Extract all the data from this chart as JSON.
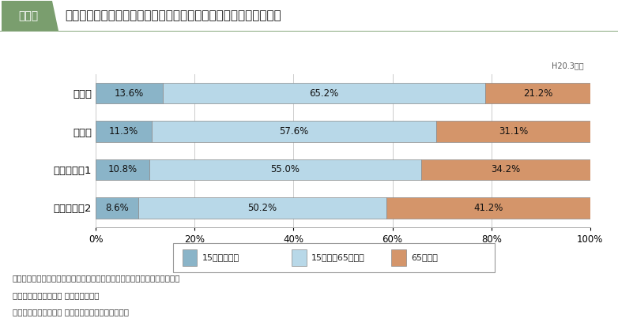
{
  "title": "岩手・宮城内陸地震における孤立発生地区（栗原市内）の高齢化率",
  "title_tag": "図表６",
  "subtitle": "H20.3時点",
  "categories": [
    "宮城県",
    "栗原市",
    "栗駒地区*1",
    "花山地区*2"
  ],
  "categories_display": [
    "宮城県",
    "栗原市",
    "栗駒地区＊1",
    "花山地区＊2"
  ],
  "segment1_values": [
    13.6,
    11.3,
    10.8,
    8.6
  ],
  "segment2_values": [
    65.2,
    57.6,
    55.0,
    50.2
  ],
  "segment3_values": [
    21.2,
    31.1,
    34.2,
    41.2
  ],
  "segment1_color": "#8ab4c8",
  "segment2_color": "#b8d8e8",
  "segment3_color": "#d4956a",
  "segment1_label": "15歳未満人口",
  "segment2_label": "15歳以上65歳未満",
  "segment3_label": "65歳以上",
  "tag_color": "#7a9e6e",
  "tag_line_color": "#7a9e6e",
  "bottom_line_color": "#7a9e6e",
  "footnote1": "出典：宮城県住民基本台帳年報，栗原市住民基本台帳年報を基に内閣府作成",
  "footnote2": "＊１　栗駒地区のうち 耕英集落が孤立",
  "footnote3": "＊２　花山地区のうち 中村集落及び浅布集落が孤立",
  "background_color": "#ffffff",
  "grid_color": "#cccccc"
}
